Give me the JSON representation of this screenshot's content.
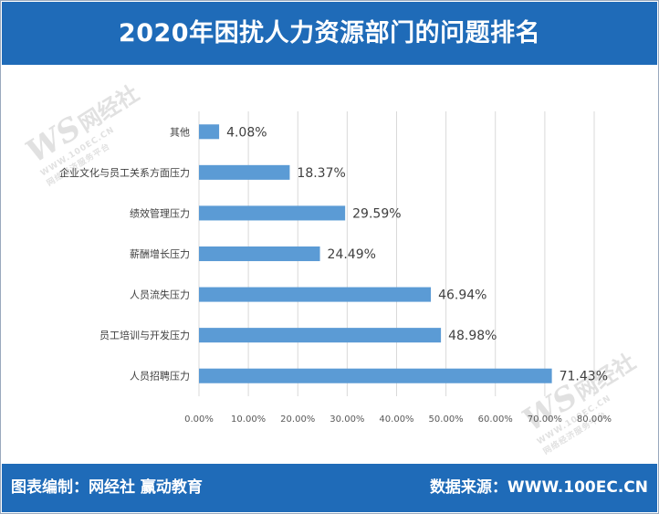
{
  "title": "2020年困扰人力资源部门的问题排名",
  "footer": {
    "left": "图表编制：网经社  赢动教育",
    "right": "数据来源：WWW.100EC.CN"
  },
  "watermark": {
    "logo": "WS",
    "name": "网经社",
    "url": "WWW.100EC.CN",
    "tagline": "网络经济服务平台"
  },
  "chart_data": {
    "type": "bar",
    "orientation": "horizontal",
    "categories": [
      "其他",
      "企业文化与员工关系方面压力",
      "绩效管理压力",
      "薪酬增长压力",
      "人员流失压力",
      "员工培训与开发压力",
      "人员招聘压力"
    ],
    "values": [
      4.08,
      18.37,
      29.59,
      24.49,
      46.94,
      48.98,
      71.43
    ],
    "value_labels": [
      "4.08%",
      "18.37%",
      "29.59%",
      "24.49%",
      "46.94%",
      "48.98%",
      "71.43%"
    ],
    "xlim": [
      0,
      80
    ],
    "xticks": [
      "0.00%",
      "10.00%",
      "20.00%",
      "30.00%",
      "40.00%",
      "50.00%",
      "60.00%",
      "70.00%",
      "80.00%"
    ],
    "grid": true,
    "bar_color": "#5b9bd5",
    "grid_color": "#d9d9d9"
  }
}
